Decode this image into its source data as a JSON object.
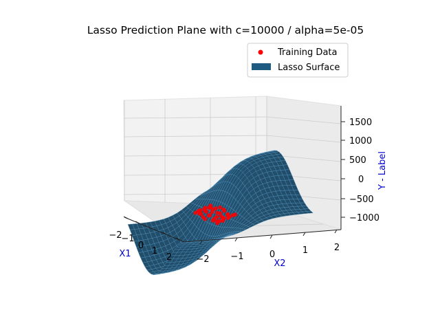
{
  "chart_data": {
    "type": "surface3d",
    "title": "Lasso Prediction Plane with c=10000 / alpha=5e-05",
    "xlabel": "X1",
    "ylabel": "X2",
    "zlabel": "Y - Label",
    "x_ticks": [
      "−2",
      "−1",
      "0",
      "1",
      "2"
    ],
    "y_ticks": [
      "−2",
      "−1",
      "0",
      "1",
      "2"
    ],
    "z_ticks": [
      "−1000",
      "−500",
      "0",
      "500",
      "1000",
      "1500"
    ],
    "xlim": [
      -2.5,
      2.5
    ],
    "ylim": [
      -2.5,
      2.5
    ],
    "zlim": [
      -1300,
      1800
    ],
    "legend": {
      "placement": "upper-right",
      "entries": [
        {
          "label": "Training Data",
          "marker": "dot",
          "color": "#ff0000"
        },
        {
          "label": "Lasso Surface",
          "marker": "patch",
          "color": "#1f5a80"
        }
      ]
    },
    "surface_color": "#1f5a80",
    "training_color": "#ff0000",
    "grid": true
  }
}
